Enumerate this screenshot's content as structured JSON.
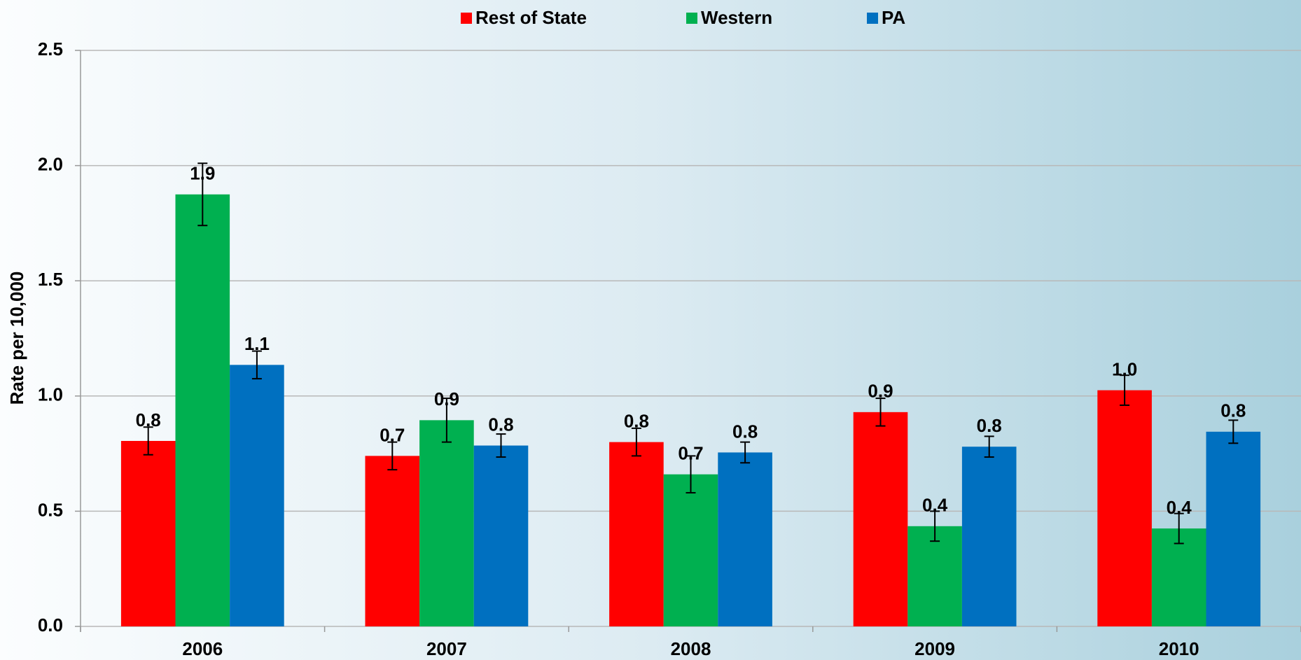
{
  "chart_data": {
    "type": "bar",
    "y_label": "Rate per 10,000",
    "categories": [
      "2006",
      "2007",
      "2008",
      "2009",
      "2010"
    ],
    "series": [
      {
        "name": "Rest of State",
        "color": "#ff0000",
        "values": [
          0.805,
          0.74,
          0.8,
          0.93,
          1.025
        ],
        "errors": [
          0.06,
          0.06,
          0.06,
          0.06,
          0.065
        ],
        "value_labels": [
          "0.8",
          "0.7",
          "0.8",
          "0.9",
          "1.0"
        ]
      },
      {
        "name": "Western",
        "color": "#00b050",
        "values": [
          1.875,
          0.895,
          0.66,
          0.435,
          0.425
        ],
        "errors": [
          0.135,
          0.095,
          0.08,
          0.065,
          0.065
        ],
        "value_labels": [
          "1.9",
          "0.9",
          "0.7",
          "0.4",
          "0.4"
        ]
      },
      {
        "name": "PA",
        "color": "#0070c0",
        "values": [
          1.135,
          0.785,
          0.755,
          0.78,
          0.845
        ],
        "errors": [
          0.06,
          0.05,
          0.045,
          0.045,
          0.05
        ],
        "value_labels": [
          "1.1",
          "0.8",
          "0.8",
          "0.8",
          "0.8"
        ]
      }
    ],
    "ylim": [
      0,
      2.5
    ],
    "yticks": [
      {
        "value": 0,
        "label": "0.0"
      },
      0.5,
      {
        "value": 1,
        "label": "1.0"
      },
      1.5,
      {
        "value": 2,
        "label": "2.0"
      },
      2.5
    ],
    "grid": true,
    "legend": "top"
  }
}
